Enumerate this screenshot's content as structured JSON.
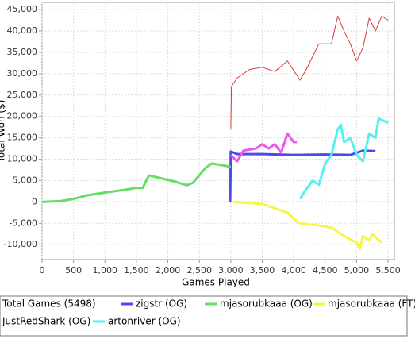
{
  "chart_data": {
    "type": "line",
    "xlabel": "Games Played",
    "ylabel": "Total Won ($)",
    "legend_title": "Total Games (5498)",
    "xlim": [
      0,
      5600
    ],
    "ylim": [
      -13500,
      46700
    ],
    "xticks": [
      0,
      500,
      {
        "value": 1000,
        "label": "1,000"
      },
      {
        "value": 1500,
        "label": "1,500"
      },
      {
        "value": 2000,
        "label": "2,000"
      },
      {
        "value": 2500,
        "label": "2,500"
      },
      {
        "value": 3000,
        "label": "3,000"
      },
      {
        "value": 3500,
        "label": "3,500"
      },
      {
        "value": 4000,
        "label": "4,000"
      },
      {
        "value": 4500,
        "label": "4,500"
      },
      {
        "value": 5000,
        "label": "5,000"
      },
      {
        "value": 5500,
        "label": "5,500"
      }
    ],
    "yticks": [
      {
        "value": -10000,
        "label": "-10,000"
      },
      {
        "value": -5000,
        "label": "-5,000"
      },
      0,
      {
        "value": 5000,
        "label": "5,000"
      },
      {
        "value": 10000,
        "label": "10,000"
      },
      {
        "value": 15000,
        "label": "15,000"
      },
      {
        "value": 20000,
        "label": "20,000"
      },
      {
        "value": 25000,
        "label": "25,000"
      },
      {
        "value": 30000,
        "label": "30,000"
      },
      {
        "value": 35000,
        "label": "35,000"
      },
      {
        "value": 40000,
        "label": "40,000"
      },
      {
        "value": 45000,
        "label": "45,000"
      }
    ],
    "grid": true,
    "series": [
      {
        "name": "zigstr (OG)",
        "color": "#4a4af0",
        "width": 3,
        "x": [
          2990,
          3000,
          3100,
          3500,
          4000,
          4500,
          4900,
          5000,
          5100,
          5300
        ],
        "values": [
          0,
          11800,
          11200,
          11200,
          11000,
          11100,
          11000,
          11500,
          12000,
          11900
        ]
      },
      {
        "name": "mjasorubkaaa (OG)",
        "color": "#66dd66",
        "width": 3,
        "x": [
          0,
          300,
          500,
          700,
          1000,
          1300,
          1500,
          1600,
          1700,
          1900,
          2100,
          2300,
          2400,
          2600,
          2700,
          2900,
          3000
        ],
        "values": [
          0,
          200,
          700,
          1500,
          2200,
          2800,
          3300,
          3300,
          6200,
          5500,
          4800,
          3900,
          4500,
          8000,
          9000,
          8500,
          8200
        ]
      },
      {
        "name": "mjasorubkaaa (FT)",
        "color": "#f5f54a",
        "width": 3,
        "x": [
          3050,
          3500,
          3700,
          3900,
          4000,
          4100,
          4400,
          4600,
          4800,
          5000,
          5050,
          5100,
          5200,
          5250,
          5400
        ],
        "values": [
          0,
          -500,
          -1500,
          -2500,
          -4000,
          -5000,
          -5500,
          -6000,
          -8000,
          -9500,
          -11000,
          -8000,
          -9000,
          -7500,
          -9500
        ]
      },
      {
        "name": "JustRedShark (OG)",
        "color": "#d63a3a",
        "width": 1,
        "x": [
          3000,
          3010,
          3100,
          3300,
          3500,
          3700,
          3900,
          4100,
          4200,
          4400,
          4600,
          4700,
          4800,
          4900,
          5000,
          5100,
          5200,
          5300,
          5400,
          5500
        ],
        "values": [
          17000,
          27000,
          29000,
          31000,
          31500,
          30500,
          33000,
          28500,
          31000,
          37000,
          37000,
          43500,
          40000,
          37000,
          33000,
          36000,
          43000,
          40000,
          43500,
          42500
        ]
      },
      {
        "name": "artonriver (OG)",
        "color": "#55f0f0",
        "width": 3,
        "x": [
          4100,
          4200,
          4300,
          4400,
          4500,
          4600,
          4700,
          4750,
          4800,
          4900,
          5000,
          5100,
          5200,
          5300,
          5350,
          5500
        ],
        "values": [
          700,
          3000,
          5000,
          4000,
          9000,
          11000,
          17000,
          18000,
          14000,
          15000,
          11000,
          9500,
          16000,
          15000,
          19500,
          18500
        ]
      },
      {
        "color": "#f055f0",
        "width": 3,
        "x": [
          3000,
          3100,
          3200,
          3400,
          3500,
          3600,
          3700,
          3800,
          3900,
          4000,
          4050
        ],
        "values": [
          11000,
          9500,
          12000,
          12500,
          13500,
          12500,
          13500,
          11500,
          16000,
          14000,
          14000
        ]
      }
    ]
  }
}
